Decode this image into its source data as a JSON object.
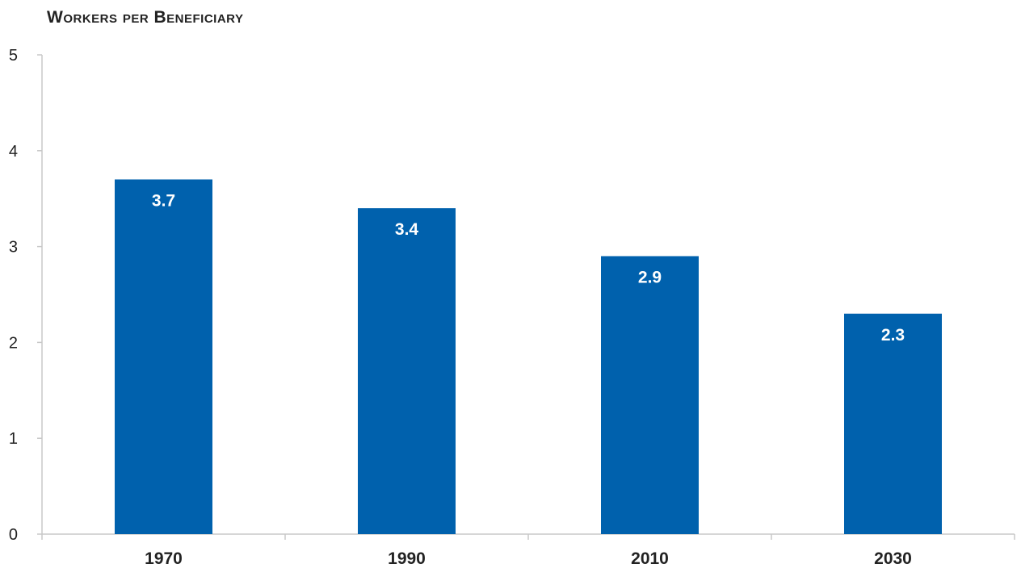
{
  "chart_data": {
    "type": "bar",
    "title": "Workers per Beneficiary",
    "categories": [
      "1970",
      "1990",
      "2010",
      "2030"
    ],
    "values": [
      3.7,
      3.4,
      2.9,
      2.3
    ],
    "data_labels": [
      "3.7",
      "3.4",
      "2.9",
      "2.3"
    ],
    "xlabel": "",
    "ylabel": "",
    "ylim": [
      0,
      5
    ],
    "yticks": [
      "0",
      "1",
      "2",
      "3",
      "4",
      "5"
    ],
    "grid": false,
    "legend": "none",
    "bar_color": "#0061ad",
    "axis_color": "#c8c8c8"
  }
}
